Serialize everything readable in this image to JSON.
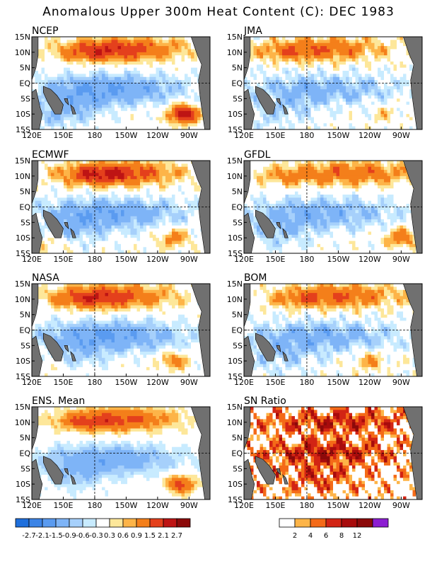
{
  "title": "Anomalous Upper 300m Heat Content (C): DEC 1983",
  "chart_data": [
    {
      "type": "heatmap",
      "panel": "NCEP",
      "title": "NCEP",
      "x_ticks": [
        "120E",
        "150E",
        "180",
        "150W",
        "120W",
        "90W"
      ],
      "y_ticks": [
        "15N",
        "10N",
        "5N",
        "EQ",
        "5S",
        "10S",
        "15S"
      ]
    },
    {
      "type": "heatmap",
      "panel": "JMA",
      "title": "JMA",
      "x_ticks": [
        "120E",
        "150E",
        "180",
        "150W",
        "120W",
        "90W"
      ],
      "y_ticks": [
        "15N",
        "10N",
        "5N",
        "EQ",
        "5S",
        "10S",
        "15S"
      ]
    },
    {
      "type": "heatmap",
      "panel": "ECMWF",
      "title": "ECMWF",
      "x_ticks": [
        "120E",
        "150E",
        "180",
        "150W",
        "120W",
        "90W"
      ],
      "y_ticks": [
        "15N",
        "10N",
        "5N",
        "EQ",
        "5S",
        "10S",
        "15S"
      ]
    },
    {
      "type": "heatmap",
      "panel": "GFDL",
      "title": "GFDL",
      "x_ticks": [
        "120E",
        "150E",
        "180",
        "150W",
        "120W",
        "90W"
      ],
      "y_ticks": [
        "15N",
        "10N",
        "5N",
        "EQ",
        "5S",
        "10S",
        "15S"
      ]
    },
    {
      "type": "heatmap",
      "panel": "NASA",
      "title": "NASA",
      "x_ticks": [
        "120E",
        "150E",
        "180",
        "150W",
        "120W",
        "90W"
      ],
      "y_ticks": [
        "15N",
        "10N",
        "5N",
        "EQ",
        "5S",
        "10S",
        "15S"
      ]
    },
    {
      "type": "heatmap",
      "panel": "BOM",
      "title": "BOM",
      "x_ticks": [
        "120E",
        "150E",
        "180",
        "150W",
        "120W",
        "90W"
      ],
      "y_ticks": [
        "15N",
        "10N",
        "5N",
        "EQ",
        "5S",
        "10S",
        "15S"
      ]
    },
    {
      "type": "heatmap",
      "panel": "ENS",
      "title": "ENS. Mean",
      "x_ticks": [
        "120E",
        "150E",
        "180",
        "150W",
        "120W",
        "90W"
      ],
      "y_ticks": [
        "15N",
        "10N",
        "5N",
        "EQ",
        "5S",
        "10S",
        "15S"
      ]
    },
    {
      "type": "heatmap",
      "panel": "SN",
      "title": "SN Ratio",
      "x_ticks": [
        "120E",
        "150E",
        "180",
        "150W",
        "120W",
        "90W"
      ],
      "y_ticks": [
        "15N",
        "10N",
        "5N",
        "EQ",
        "5S",
        "10S",
        "15S"
      ]
    }
  ],
  "colorbars": {
    "anomaly": {
      "labels": [
        "-2.7",
        "-2.1",
        "-1.5",
        "-0.9",
        "-0.6",
        "-0.3",
        "0.3",
        "0.6",
        "0.9",
        "1.5",
        "2.1",
        "2.7"
      ],
      "colors": [
        "#1e6fdc",
        "#3c84e6",
        "#5a9bf0",
        "#7eb4f7",
        "#a6d0fb",
        "#c8ebff",
        "#ffffff",
        "#fde79a",
        "#fdb448",
        "#f47f1a",
        "#e4401c",
        "#be1414",
        "#8c0a0a"
      ]
    },
    "ratio": {
      "labels": [
        "2",
        "4",
        "6",
        "8",
        "12"
      ],
      "colors": [
        "#ffffff",
        "#fdb448",
        "#f46a18",
        "#d22414",
        "#a80c0c",
        "#8c0a0a",
        "#8c1ed2"
      ]
    }
  },
  "land_color": "#707070"
}
